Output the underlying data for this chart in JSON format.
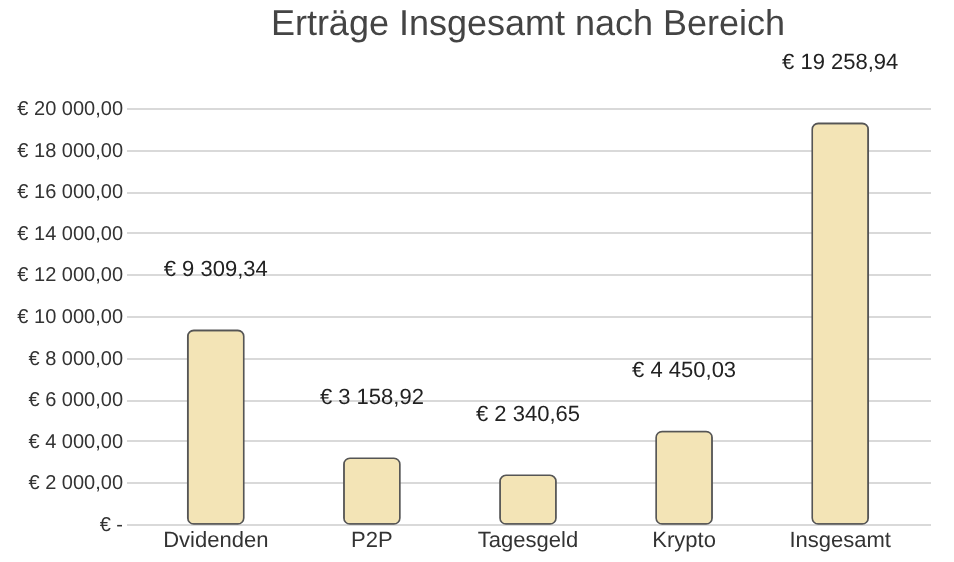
{
  "chart_data": {
    "type": "bar",
    "title": "Erträge Insgesamt nach Bereich",
    "categories": [
      "Dvidenden",
      "P2P",
      "Tagesgeld",
      "Krypto",
      "Insgesamt"
    ],
    "values": [
      9309.34,
      3158.92,
      2340.65,
      4450.03,
      19258.94
    ],
    "value_labels": [
      "€ 9 309,34",
      "€ 3 158,92",
      "€ 2 340,65",
      "€ 4 450,03",
      "€ 19 258,94"
    ],
    "color": "#f3e4b6",
    "ylim": [
      0,
      20000
    ],
    "yticks": [
      {
        "value": 0,
        "label": "€ -"
      },
      {
        "value": 2000,
        "label": "€ 2 000,00"
      },
      {
        "value": 4000,
        "label": "€ 4 000,00"
      },
      {
        "value": 6000,
        "label": "€ 6 000,00"
      },
      {
        "value": 8000,
        "label": "€ 8 000,00"
      },
      {
        "value": 10000,
        "label": "€ 10 000,00"
      },
      {
        "value": 12000,
        "label": "€ 12 000,00"
      },
      {
        "value": 14000,
        "label": "€ 14 000,00"
      },
      {
        "value": 16000,
        "label": "€ 16 000,00"
      },
      {
        "value": 18000,
        "label": "€ 18 000,00"
      },
      {
        "value": 20000,
        "label": "€ 20 000,00"
      }
    ],
    "grid": "y"
  }
}
